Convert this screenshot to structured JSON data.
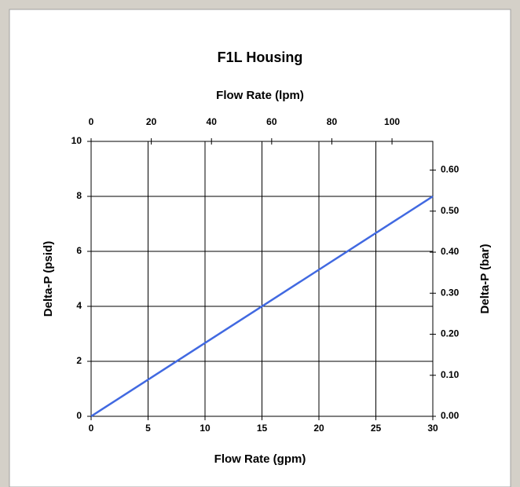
{
  "chart_data": {
    "type": "line",
    "title": "F1L Housing",
    "x_label": "Flow Rate (gpm)",
    "x2_label": "Flow Rate (lpm)",
    "y_label": "Delta-P (psid)",
    "y2_label": "Delta-P (bar)",
    "x": [
      0,
      30
    ],
    "values": [
      0,
      8
    ],
    "color": "#4169e1",
    "xlim": [
      0,
      30
    ],
    "xticks": [
      0,
      5,
      10,
      15,
      20,
      25,
      30
    ],
    "x2lim": [
      0,
      113.56
    ],
    "x2ticks": [
      0,
      20,
      40,
      60,
      80,
      100
    ],
    "ylim": [
      0,
      10
    ],
    "yticks": [
      0,
      2,
      4,
      6,
      8,
      10
    ],
    "y2lim": [
      0,
      0.67
    ],
    "y2ticks": [
      {
        "value": 0,
        "label": "0.00"
      },
      {
        "value": 0.1,
        "label": "0.10"
      },
      {
        "value": 0.2,
        "label": "0.20"
      },
      {
        "value": 0.3,
        "label": "0.30"
      },
      {
        "value": 0.4,
        "label": "0.40"
      },
      {
        "value": 0.5,
        "label": "0.50"
      },
      {
        "value": 0.6,
        "label": "0.60"
      }
    ],
    "grid": true
  }
}
